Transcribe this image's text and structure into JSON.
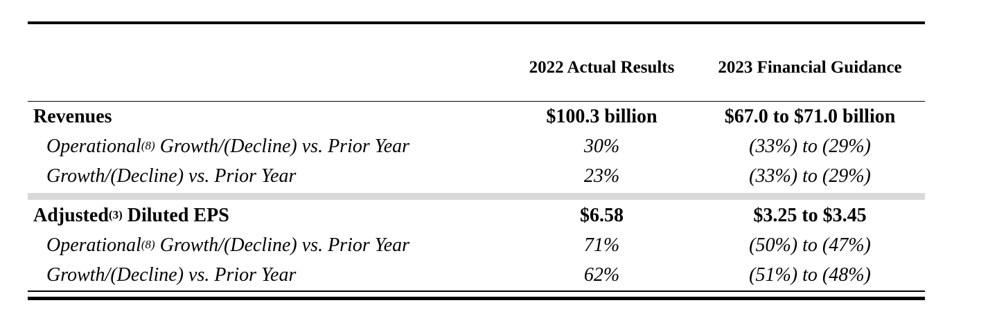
{
  "header": {
    "col_a": "2022 Actual Results",
    "col_b": "2023 Financial Guidance"
  },
  "sections": [
    {
      "label": "Revenues",
      "label_sup": "",
      "label_suffix": "",
      "actual": "$100.3 billion",
      "guidance": "$67.0 to $71.0 billion",
      "rows": [
        {
          "label_pre": "Operational",
          "label_sup": "(8)",
          "label_post": " Growth/(Decline) vs. Prior Year",
          "actual": "30%",
          "guidance": "(33%) to (29%)"
        },
        {
          "label_pre": "Growth/(Decline) vs. Prior Year",
          "label_sup": "",
          "label_post": "",
          "actual": "23%",
          "guidance": "(33%) to (29%)"
        }
      ]
    },
    {
      "label": "Adjusted",
      "label_sup": "(3)",
      "label_suffix": " Diluted EPS",
      "actual": "$6.58",
      "guidance": "$3.25 to $3.45",
      "rows": [
        {
          "label_pre": "Operational",
          "label_sup": "(8)",
          "label_post": " Growth/(Decline) vs. Prior Year",
          "actual": "71%",
          "guidance": "(50%) to (47%)"
        },
        {
          "label_pre": "Growth/(Decline) vs. Prior Year",
          "label_sup": "",
          "label_post": "",
          "actual": "62%",
          "guidance": "(51%) to (48%)"
        }
      ]
    }
  ]
}
